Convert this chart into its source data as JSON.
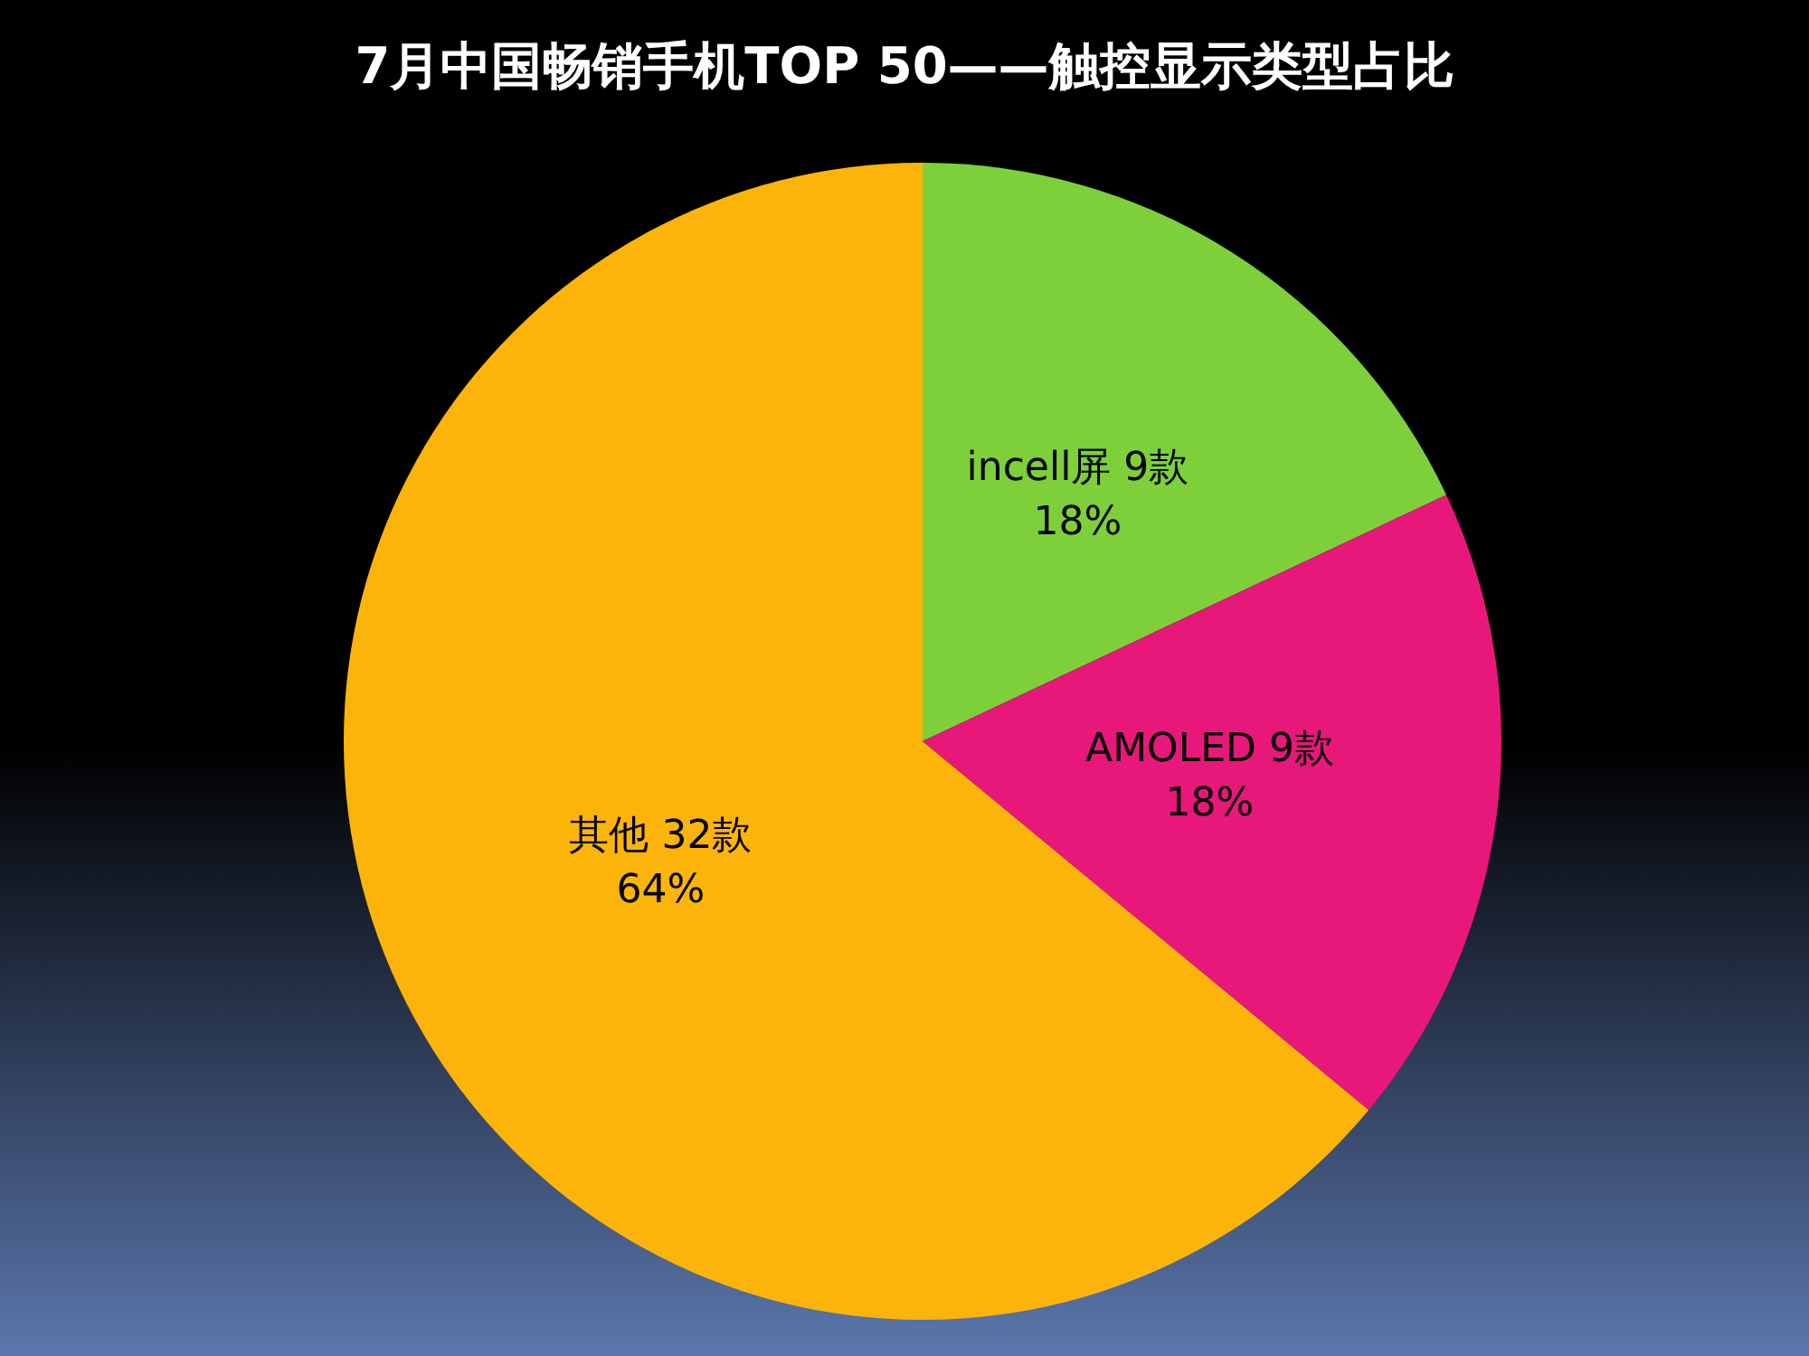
{
  "chart_data": {
    "type": "pie",
    "title": "7月中国畅销手机TOP 50——触控显示类型占比",
    "categories": [
      "incell屏",
      "AMOLED",
      "其他"
    ],
    "values": [
      9,
      9,
      32
    ],
    "colors": [
      "#7ed03a",
      "#e8177a",
      "#fdb40a"
    ],
    "value_labels": [
      "9款\n18%",
      "9款\n18%",
      "32款\n64%"
    ],
    "legend": false
  }
}
